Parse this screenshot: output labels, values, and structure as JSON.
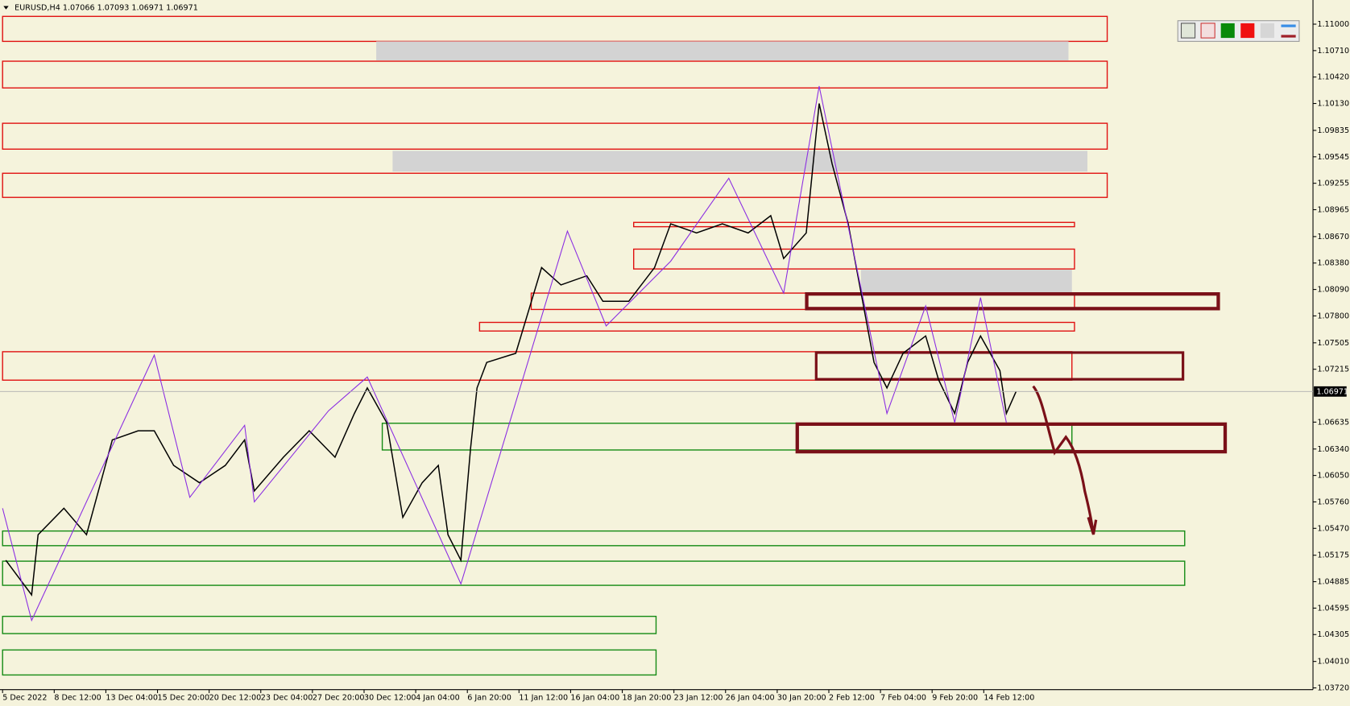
{
  "chart_data": {
    "type": "line",
    "title": "EURUSD,H4  1.07066 1.07093 1.06971 1.06971",
    "x": [
      1,
      9,
      11,
      19,
      26,
      34,
      42,
      47,
      53,
      61,
      69,
      75,
      78,
      87,
      95,
      103,
      109,
      113,
      119,
      124,
      130,
      135,
      138,
      142,
      145,
      147,
      150,
      159,
      167,
      173,
      181,
      186,
      194,
      202,
      207,
      215,
      223,
      231,
      238,
      242,
      249,
      253,
      257,
      262,
      266,
      270,
      274,
      279,
      286,
      290,
      295,
      299,
      303,
      309,
      311,
      314
    ],
    "values": [
      1.0512,
      1.0474,
      1.054,
      1.0569,
      1.054,
      1.0644,
      1.0654,
      1.0654,
      1.0616,
      1.0597,
      1.0616,
      1.0644,
      1.0588,
      1.0625,
      1.0654,
      1.0625,
      1.0673,
      1.0701,
      1.0663,
      1.0559,
      1.0597,
      1.0616,
      1.054,
      1.0512,
      1.0635,
      1.0701,
      1.0729,
      1.0739,
      1.0833,
      1.0814,
      1.0824,
      1.0796,
      1.0796,
      1.0833,
      1.0881,
      1.0871,
      1.0881,
      1.0871,
      1.089,
      1.0843,
      1.0871,
      1.1013,
      1.0947,
      1.0881,
      1.0805,
      1.0729,
      1.0701,
      1.0739,
      1.0758,
      1.071,
      1.0673,
      1.0729,
      1.0758,
      1.072,
      1.0673,
      1.0697
    ],
    "color": "#000000",
    "zigzag": {
      "x": [
        0,
        9,
        47,
        58,
        75,
        78,
        101,
        113,
        142,
        175,
        187,
        207,
        225,
        242,
        253,
        274,
        286,
        295,
        303,
        311
      ],
      "values": [
        1.0569,
        1.0446,
        1.0737,
        1.0581,
        1.066,
        1.0576,
        1.0676,
        1.0713,
        1.0486,
        1.0873,
        1.0769,
        1.084,
        1.0931,
        1.0805,
        1.1032,
        1.0673,
        1.0791,
        1.0663,
        1.08,
        1.0663
      ],
      "color": "#8a2be2"
    },
    "current_price": 1.06971,
    "xlim": [
      0,
      406
    ],
    "ylim": [
      1.03701,
      1.11265
    ],
    "xticks": [
      {
        "value": 0,
        "label": "5 Dec 2022"
      },
      {
        "value": 16,
        "label": "8 Dec 12:00"
      },
      {
        "value": 32,
        "label": "13 Dec 04:00"
      },
      {
        "value": 48,
        "label": "15 Dec 20:00"
      },
      {
        "value": 64,
        "label": "20 Dec 12:00"
      },
      {
        "value": 80,
        "label": "23 Dec 04:00"
      },
      {
        "value": 96,
        "label": "27 Dec 20:00"
      },
      {
        "value": 112,
        "label": "30 Dec 12:00"
      },
      {
        "value": 128,
        "label": "4 Jan 04:00"
      },
      {
        "value": 144,
        "label": "6 Jan 20:00"
      },
      {
        "value": 160,
        "label": "11 Jan 12:00"
      },
      {
        "value": 176,
        "label": "16 Jan 04:00"
      },
      {
        "value": 192,
        "label": "18 Jan 20:00"
      },
      {
        "value": 208,
        "label": "23 Jan 12:00"
      },
      {
        "value": 224,
        "label": "26 Jan 04:00"
      },
      {
        "value": 240,
        "label": "30 Jan 20:00"
      },
      {
        "value": 256,
        "label": "2 Feb 12:00"
      },
      {
        "value": 272,
        "label": "7 Feb 04:00"
      },
      {
        "value": 288,
        "label": "9 Feb 20:00"
      },
      {
        "value": 304,
        "label": "14 Feb 12:00"
      }
    ],
    "yticks": [
      {
        "value": 1.11,
        "label": "1.11000"
      },
      {
        "value": 1.1071,
        "label": "1.10710"
      },
      {
        "value": 1.1042,
        "label": "1.10420"
      },
      {
        "value": 1.1013,
        "label": "1.10130"
      },
      {
        "value": 1.09835,
        "label": "1.09835"
      },
      {
        "value": 1.09545,
        "label": "1.09545"
      },
      {
        "value": 1.09255,
        "label": "1.09255"
      },
      {
        "value": 1.08965,
        "label": "1.08965"
      },
      {
        "value": 1.0867,
        "label": "1.08670"
      },
      {
        "value": 1.0838,
        "label": "1.08380"
      },
      {
        "value": 1.0809,
        "label": "1.08090"
      },
      {
        "value": 1.078,
        "label": "1.07800"
      },
      {
        "value": 1.07505,
        "label": "1.07505"
      },
      {
        "value": 1.07215,
        "label": "1.07215"
      },
      {
        "value": 1.06635,
        "label": "1.06635"
      },
      {
        "value": 1.0634,
        "label": "1.06340"
      },
      {
        "value": 1.0605,
        "label": "1.06050"
      },
      {
        "value": 1.0576,
        "label": "1.05760"
      },
      {
        "value": 1.0547,
        "label": "1.05470"
      },
      {
        "value": 1.05175,
        "label": "1.05175"
      },
      {
        "value": 1.04885,
        "label": "1.04885"
      },
      {
        "value": 1.04595,
        "label": "1.04595"
      },
      {
        "value": 1.04305,
        "label": "1.04305"
      },
      {
        "value": 1.0401,
        "label": "1.04010"
      },
      {
        "value": 1.0372,
        "label": "1.03720"
      }
    ]
  }
}
